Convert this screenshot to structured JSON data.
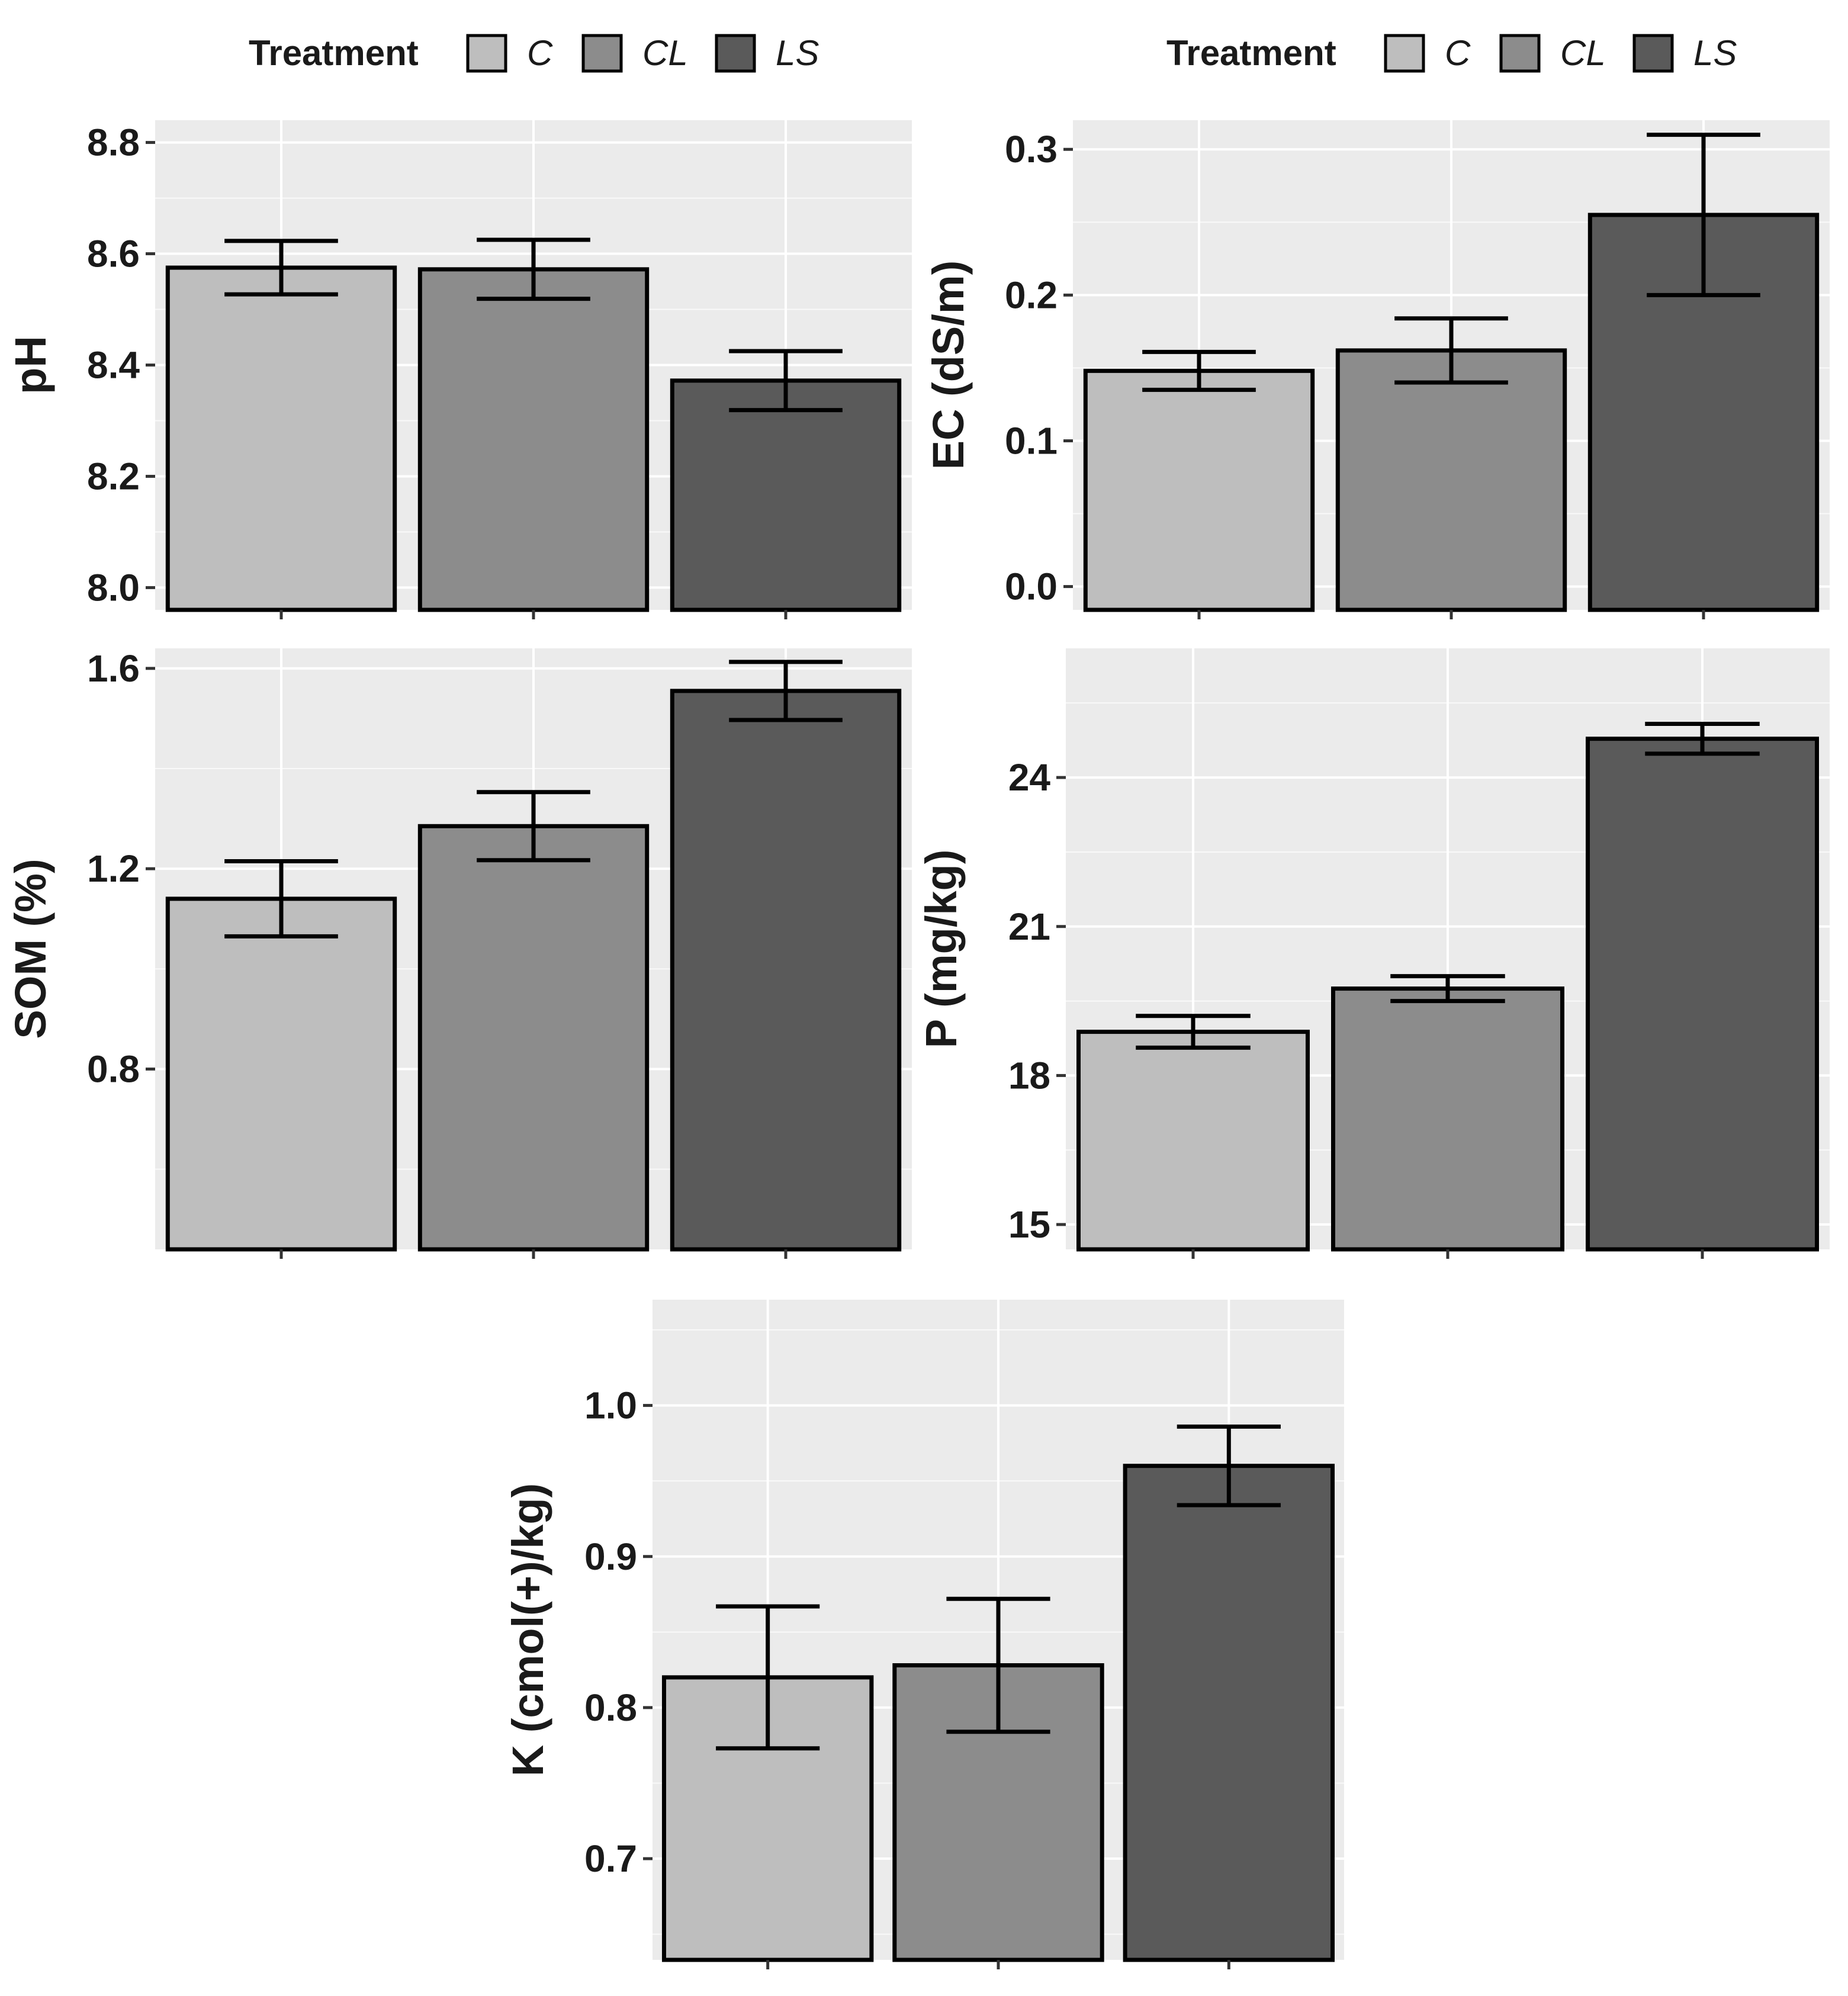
{
  "legend_title": "Treatment",
  "colors": {
    "C": "#bebebe",
    "CL": "#8c8c8c",
    "LS": "#5a5a5a",
    "panel_bg": "#ebebeb",
    "grid": "#ffffff",
    "stroke": "#000000"
  },
  "chart_data": [
    {
      "id": "ph",
      "type": "bar",
      "ylabel": "pH",
      "categories": [
        "C",
        "CL",
        "LS"
      ],
      "values": [
        8.575,
        8.572,
        8.372
      ],
      "errors": [
        0.048,
        0.053,
        0.053
      ],
      "ylim": [
        7.96,
        8.84
      ],
      "yticks": [
        "8.0",
        "8.2",
        "8.4",
        "8.6",
        "8.8"
      ],
      "legend": true
    },
    {
      "id": "ec",
      "type": "bar",
      "ylabel": "EC (dS/m)",
      "categories": [
        "C",
        "CL",
        "LS"
      ],
      "values": [
        0.148,
        0.162,
        0.255
      ],
      "errors": [
        0.013,
        0.022,
        0.055
      ],
      "ylim": [
        -0.016,
        0.32
      ],
      "yticks": [
        "0.0",
        "0.1",
        "0.2",
        "0.3"
      ],
      "legend": true
    },
    {
      "id": "som",
      "type": "bar",
      "ylabel": "SOM (%)",
      "categories": [
        "C",
        "CL",
        "LS"
      ],
      "values": [
        1.14,
        1.285,
        1.555
      ],
      "errors": [
        0.075,
        0.068,
        0.058
      ],
      "ylim": [
        0.44,
        1.64
      ],
      "yticks": [
        "0.8",
        "1.2",
        "1.6"
      ],
      "legend": false
    },
    {
      "id": "p",
      "type": "bar",
      "ylabel": "P (mg/kg)",
      "categories": [
        "C",
        "CL",
        "LS"
      ],
      "values": [
        18.88,
        19.75,
        24.78
      ],
      "errors": [
        0.32,
        0.25,
        0.3
      ],
      "ylim": [
        14.5,
        26.6
      ],
      "yticks": [
        "15",
        "18",
        "21",
        "24"
      ],
      "legend": false
    },
    {
      "id": "k",
      "type": "bar",
      "ylabel": "K (cmol(+)/kg)",
      "categories": [
        "C",
        "CL",
        "LS"
      ],
      "values": [
        0.82,
        0.828,
        0.96
      ],
      "errors": [
        0.047,
        0.044,
        0.026
      ],
      "ylim": [
        0.633,
        1.07
      ],
      "yticks": [
        "0.7",
        "0.8",
        "0.9",
        "1.0"
      ],
      "legend": false
    }
  ]
}
